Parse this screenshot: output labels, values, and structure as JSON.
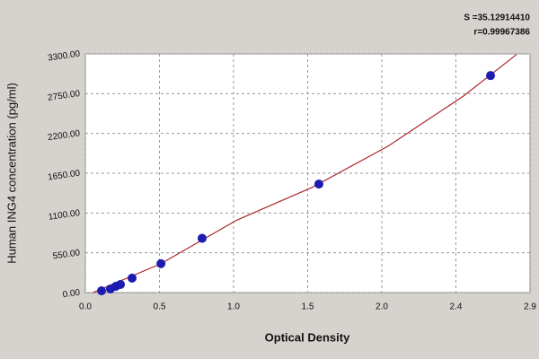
{
  "chart_data": {
    "type": "scatter",
    "annotations": [
      "S =35.12914410",
      "r=0.99967386"
    ],
    "y_label": "Human ING4 concentration (pg/ml)",
    "x_label": "Optical Density",
    "x": [
      0.107,
      0.166,
      0.202,
      0.232,
      0.309,
      0.5,
      0.772,
      1.544,
      2.679
    ],
    "values": [
      25,
      50,
      87,
      112,
      200,
      400,
      750,
      1500,
      3000
    ],
    "color": "#1c1cb0",
    "fit": {
      "x": [
        0.05,
        0.5,
        1.0,
        1.5,
        2.0,
        2.5,
        2.85
      ],
      "values": [
        0,
        400,
        1000,
        1455,
        2022,
        2717,
        3290
      ],
      "color": "#a8282e"
    },
    "xlim": [
      0,
      2.94
    ],
    "ylim": [
      0,
      3300
    ],
    "xticks": [
      {
        "value": 0,
        "label": "0.0"
      },
      {
        "value": 0.49,
        "label": "0.5"
      },
      {
        "value": 0.98,
        "label": "1.0"
      },
      {
        "value": 1.47,
        "label": "1.5"
      },
      {
        "value": 1.96,
        "label": "2.0"
      },
      {
        "value": 2.45,
        "label": "2.4"
      },
      {
        "value": 2.94,
        "label": "2.9"
      }
    ],
    "yticks": [
      {
        "value": 0,
        "label": "0.00"
      },
      {
        "value": 550,
        "label": "550.00"
      },
      {
        "value": 1100,
        "label": "1100.00"
      },
      {
        "value": 1650,
        "label": "1650.00"
      },
      {
        "value": 2200,
        "label": "2200.00"
      },
      {
        "value": 2750,
        "label": "2750.00"
      },
      {
        "value": 3300,
        "label": "3300.00"
      }
    ],
    "grid": true
  }
}
